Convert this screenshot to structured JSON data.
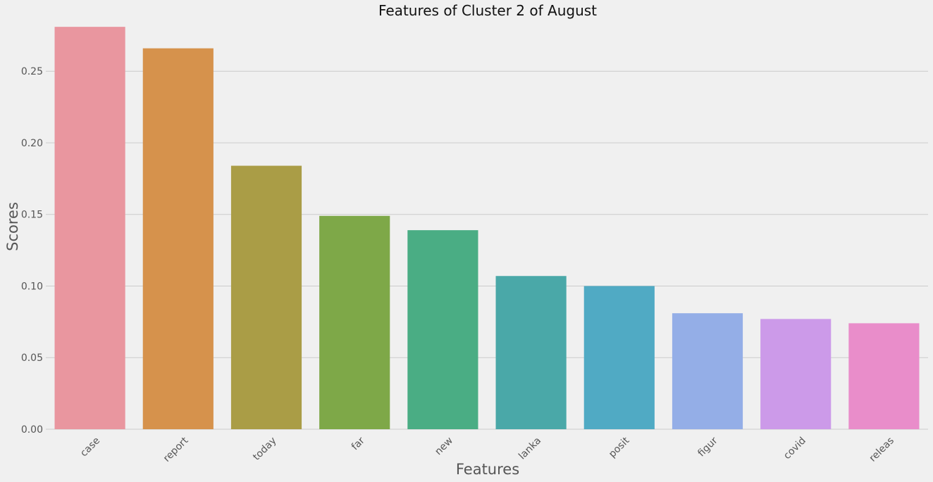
{
  "chart_data": {
    "type": "bar",
    "title": "Features of Cluster 2 of August",
    "xlabel": "Features",
    "ylabel": "Scores",
    "categories": [
      "case",
      "report",
      "today",
      "far",
      "new",
      "lanka",
      "posit",
      "figur",
      "covid",
      "releas"
    ],
    "values": [
      0.281,
      0.266,
      0.184,
      0.149,
      0.139,
      0.107,
      0.1,
      0.081,
      0.077,
      0.074
    ],
    "colors": [
      "#e9969f",
      "#d6924c",
      "#aa9d46",
      "#7ea848",
      "#4aad84",
      "#4aa8a8",
      "#50aac4",
      "#94aee7",
      "#cc9ae9",
      "#e98dca"
    ],
    "yticks": [
      0.0,
      0.05,
      0.1,
      0.15,
      0.2,
      0.25
    ],
    "ytick_labels": [
      "0.00",
      "0.05",
      "0.10",
      "0.15",
      "0.20",
      "0.25"
    ],
    "ylim": [
      0,
      0.285
    ],
    "grid": true,
    "xtick_rotation": 45
  }
}
